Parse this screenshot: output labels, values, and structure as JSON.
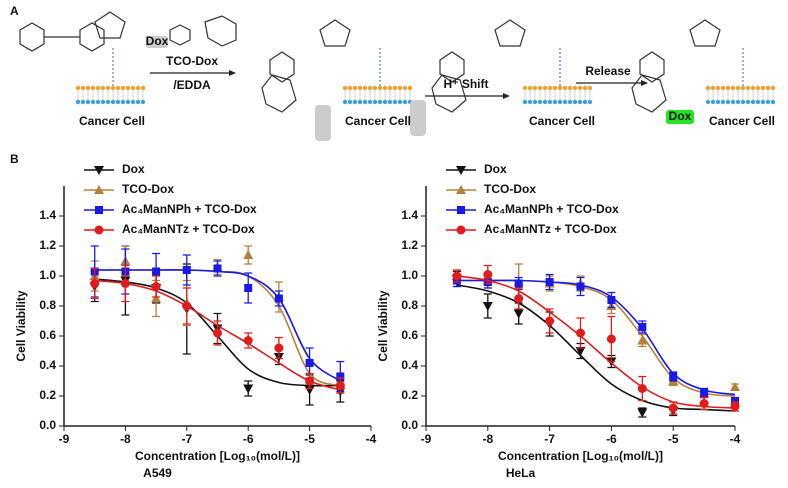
{
  "scheme": {
    "panel": "A",
    "dox_tag": "Dox",
    "reagent": "TCO-Dox",
    "solvent": "/EDDA",
    "step2": "H⁺ Shift",
    "step3": "Release",
    "released": "Dox",
    "cell_labels": [
      "Cancer Cell",
      "Cancer Cell",
      "Cancer Cell",
      "Cancer Cell"
    ]
  },
  "panel_b": "B",
  "chart_data": [
    {
      "type": "scatter",
      "subtitle": "A549",
      "xlabel": "Concentration [Log₁₀(mol/L)]",
      "ylabel": "Cell Viability",
      "legend": "upper left",
      "x": [
        -8.5,
        -8,
        -7.5,
        -7,
        -6.5,
        -6,
        -5.5,
        -5,
        -4.5
      ],
      "xlim": [
        -9,
        -4
      ],
      "xticks": [
        -9,
        -8,
        -7,
        -6,
        -5,
        -4
      ],
      "ylim": [
        0,
        1.6
      ],
      "yticks": [
        {
          "value": 0,
          "label": "0.0"
        },
        {
          "value": 0.2,
          "label": "0.2"
        },
        {
          "value": 0.4,
          "label": "0.4"
        },
        {
          "value": 0.6,
          "label": "0.6"
        },
        {
          "value": 0.8,
          "label": "0.8"
        },
        {
          "value": 1,
          "label": "1.0"
        },
        {
          "value": 1.2,
          "label": "1.2"
        },
        {
          "value": 1.4,
          "label": "1.4"
        }
      ],
      "series": [
        {
          "name": "Dox",
          "color": "#111111",
          "marker": "triangle-down",
          "values": [
            0.93,
            0.97,
            0.92,
            0.78,
            0.65,
            0.25,
            0.46,
            0.24,
            0.23
          ],
          "errors": [
            0.1,
            0.23,
            0.1,
            0.3,
            0.1,
            0.05,
            0.05,
            0.1,
            0.07
          ],
          "fit_values": [
            0.98,
            0.96,
            0.92,
            0.82,
            0.6,
            0.38,
            0.29,
            0.27,
            0.27
          ]
        },
        {
          "name": "TCO-Dox",
          "color": "#b5803a",
          "marker": "triangle-up",
          "values": [
            1.0,
            1.1,
            0.85,
            0.82,
            1.06,
            1.14,
            0.86,
            0.3,
            0.27
          ],
          "errors": [
            0.1,
            0.1,
            0.12,
            0.15,
            0.05,
            0.06,
            0.1,
            0.05,
            0.05
          ],
          "fit_values": [
            1.04,
            1.04,
            1.04,
            1.04,
            1.03,
            1.0,
            0.8,
            0.35,
            0.27
          ]
        },
        {
          "name": "Ac₄ManNPh + TCO-Dox",
          "color": "#1a1ae6",
          "marker": "square",
          "values": [
            1.03,
            1.03,
            1.03,
            1.04,
            1.05,
            0.92,
            0.85,
            0.42,
            0.33
          ],
          "errors": [
            0.17,
            0.15,
            0.12,
            0.1,
            0.05,
            0.1,
            0.05,
            0.1,
            0.1
          ],
          "fit_values": [
            1.04,
            1.04,
            1.04,
            1.04,
            1.03,
            1.0,
            0.85,
            0.45,
            0.3
          ]
        },
        {
          "name": "Ac₄ManNTz + TCO-Dox",
          "color": "#e01c1c",
          "marker": "circle",
          "values": [
            0.95,
            0.95,
            0.93,
            0.8,
            0.62,
            0.57,
            0.52,
            0.3,
            0.27
          ],
          "errors": [
            0.1,
            0.12,
            0.07,
            0.12,
            0.08,
            0.05,
            0.07,
            0.05,
            0.05
          ],
          "fit_values": [
            0.97,
            0.95,
            0.9,
            0.8,
            0.67,
            0.55,
            0.42,
            0.3,
            0.24
          ]
        }
      ]
    },
    {
      "type": "scatter",
      "subtitle": "HeLa",
      "xlabel": "Concentration [Log₁₀(mol/L)]",
      "ylabel": "Cell Viability",
      "legend": "upper left",
      "x": [
        -8.5,
        -8,
        -7.5,
        -7,
        -6.5,
        -6,
        -5.5,
        -5,
        -4.5,
        -4
      ],
      "xlim": [
        -9,
        -4
      ],
      "xticks": [
        -9,
        -8,
        -7,
        -6,
        -5,
        -4
      ],
      "ylim": [
        0,
        1.6
      ],
      "yticks": [
        {
          "value": 0,
          "label": "0.0"
        },
        {
          "value": 0.2,
          "label": "0.2"
        },
        {
          "value": 0.4,
          "label": "0.4"
        },
        {
          "value": 0.6,
          "label": "0.6"
        },
        {
          "value": 0.8,
          "label": "0.8"
        },
        {
          "value": 1,
          "label": "1.0"
        },
        {
          "value": 1.2,
          "label": "1.2"
        },
        {
          "value": 1.4,
          "label": "1.4"
        }
      ],
      "series": [
        {
          "name": "Dox",
          "color": "#111111",
          "marker": "triangle-down",
          "values": [
            0.98,
            0.8,
            0.75,
            0.68,
            0.5,
            0.43,
            0.09,
            0.1,
            null,
            null
          ],
          "errors": [
            0.05,
            0.08,
            0.07,
            0.08,
            0.05,
            0.04,
            0.03,
            0.03,
            null,
            null
          ],
          "fit_values": [
            0.94,
            0.9,
            0.82,
            0.67,
            0.47,
            0.28,
            0.17,
            0.12,
            0.11,
            0.1
          ]
        },
        {
          "name": "TCO-Dox",
          "color": "#b5803a",
          "marker": "triangle-up",
          "values": [
            1.0,
            0.97,
            0.96,
            0.95,
            0.95,
            0.8,
            0.57,
            0.3,
            0.22,
            0.26
          ],
          "errors": [
            0.04,
            0.05,
            0.12,
            0.05,
            0.05,
            0.05,
            0.04,
            0.03,
            0.03,
            0.02
          ],
          "fit_values": [
            0.97,
            0.97,
            0.97,
            0.96,
            0.93,
            0.84,
            0.6,
            0.32,
            0.22,
            0.2
          ]
        },
        {
          "name": "Ac₄ManNPh + TCO-Dox",
          "color": "#1a1ae6",
          "marker": "square",
          "values": [
            0.97,
            0.96,
            0.95,
            0.96,
            0.93,
            0.84,
            0.66,
            0.33,
            0.22,
            0.16
          ],
          "errors": [
            0.04,
            0.04,
            0.04,
            0.05,
            0.06,
            0.05,
            0.04,
            0.03,
            0.03,
            0.03
          ],
          "fit_values": [
            0.97,
            0.97,
            0.97,
            0.96,
            0.94,
            0.86,
            0.65,
            0.35,
            0.24,
            0.21
          ]
        },
        {
          "name": "Ac₄ManNTz + TCO-Dox",
          "color": "#e01c1c",
          "marker": "circle",
          "values": [
            1.0,
            1.01,
            0.85,
            0.7,
            0.62,
            0.58,
            0.25,
            0.12,
            0.15,
            0.13
          ],
          "errors": [
            0.04,
            0.06,
            0.07,
            0.08,
            0.1,
            0.15,
            0.08,
            0.04,
            0.04,
            0.03
          ],
          "fit_values": [
            1.0,
            0.97,
            0.9,
            0.76,
            0.6,
            0.42,
            0.26,
            0.16,
            0.13,
            0.12
          ]
        }
      ]
    }
  ]
}
